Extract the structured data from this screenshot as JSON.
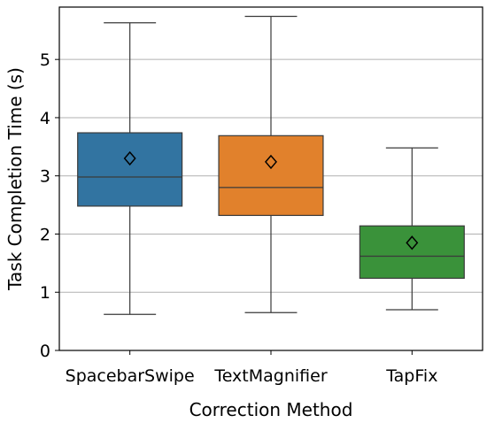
{
  "chart_data": {
    "type": "boxplot",
    "xlabel": "Correction Method",
    "ylabel": "Task Completion Time (s)",
    "ylim": [
      0,
      5.9
    ],
    "yticks": [
      0,
      1,
      2,
      3,
      4,
      5
    ],
    "grid": "horizontal",
    "categories": [
      "SpacebarSwipe",
      "TextMagnifier",
      "TapFix"
    ],
    "colors": [
      "#3274a1",
      "#e1812c",
      "#3a923a"
    ],
    "boxes": [
      {
        "category": "SpacebarSwipe",
        "whisker_low": 0.62,
        "q1": 2.48,
        "median": 2.98,
        "q3": 3.74,
        "whisker_high": 5.63,
        "mean": 3.3
      },
      {
        "category": "TextMagnifier",
        "whisker_low": 0.65,
        "q1": 2.32,
        "median": 2.8,
        "q3": 3.69,
        "whisker_high": 5.74,
        "mean": 3.24
      },
      {
        "category": "TapFix",
        "whisker_low": 0.7,
        "q1": 1.24,
        "median": 1.62,
        "q3": 2.14,
        "whisker_high": 3.48,
        "mean": 1.85
      }
    ]
  }
}
